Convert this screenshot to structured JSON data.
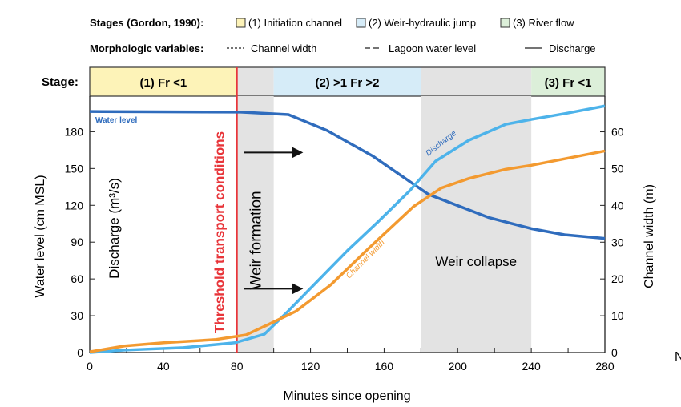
{
  "chart_data": {
    "type": "line",
    "legend": {
      "stages_title": "Stages (Gordon, 1990):",
      "stages": [
        {
          "label": "(1) Initiation channel",
          "color": "#fdf3b8"
        },
        {
          "label": "(2) Weir-hydraulic jump",
          "color": "#d6ecf8"
        },
        {
          "label": "(3) River flow",
          "color": "#dcefd9"
        }
      ],
      "variables_title": "Morphologic variables:",
      "variables": [
        {
          "label": "Channel width",
          "style": "dotted"
        },
        {
          "label": "Lagoon water level",
          "style": "dashed"
        },
        {
          "label": "Discharge",
          "style": "solid"
        }
      ],
      "placement": "top"
    },
    "stage_bar": {
      "label": "Stage:",
      "segments": [
        {
          "from": 0,
          "to": 80,
          "label": "(1) Fr <1",
          "color": "#fdf3b8"
        },
        {
          "from": 80,
          "to": 100,
          "label": "",
          "color": "#e3e3e3"
        },
        {
          "from": 100,
          "to": 180,
          "label": "(2) >1 Fr >2",
          "color": "#d6ecf8"
        },
        {
          "from": 180,
          "to": 240,
          "label": "",
          "color": "#e3e3e3"
        },
        {
          "from": 240,
          "to": 280,
          "label": "(3) Fr <1",
          "color": "#dcefd9"
        }
      ]
    },
    "xlabel": "Minutes since opening",
    "ylabel_left": "Water level (cm MSL)",
    "ylabel_left_inner": "Discharge (m³/s)",
    "ylabel_right": "Channel width (m)",
    "xlim": [
      0,
      280
    ],
    "ylim_left": [
      0,
      209
    ],
    "ylim_right": [
      0,
      69.7
    ],
    "xticks": [
      0,
      40,
      80,
      120,
      160,
      200,
      240,
      280
    ],
    "yticks_left": [
      0,
      30,
      60,
      90,
      120,
      150,
      180
    ],
    "yticks_right": [
      0,
      10,
      20,
      30,
      40,
      50,
      60
    ],
    "grid": false,
    "shaded_regions": [
      {
        "from": 80,
        "to": 100,
        "label": "Weir formation",
        "color": "#e3e3e3"
      },
      {
        "from": 180,
        "to": 240,
        "label": "Weir collapse",
        "color": "#e3e3e3"
      }
    ],
    "threshold": {
      "x": 80,
      "label": "Threshold transport conditions",
      "color": "#e8353a"
    },
    "arrows": [
      {
        "y": 163,
        "from": 81,
        "to": 116
      },
      {
        "y": 52,
        "from": 81,
        "to": 116
      }
    ],
    "series": [
      {
        "name": "Water level",
        "axis": "left",
        "color": "#2f6cbd",
        "x": [
          0,
          82,
          108,
          129,
          154,
          184,
          217,
          240,
          258,
          280
        ],
        "y": [
          196.5,
          196,
          194,
          181,
          160,
          129,
          110,
          101,
          96,
          93
        ]
      },
      {
        "name": "Discharge",
        "axis": "left",
        "color": "#4db3ea",
        "x": [
          0,
          19,
          51,
          79,
          95,
          108,
          123,
          140,
          157,
          174,
          188,
          206,
          226,
          240,
          259,
          280
        ],
        "y": [
          0,
          2,
          4,
          8,
          15,
          34,
          57,
          83,
          107,
          132,
          156,
          173,
          186,
          190,
          195,
          201
        ]
      },
      {
        "name": "Channel width",
        "axis": "right",
        "color": "#f39a30",
        "x": [
          0,
          19,
          41,
          68,
          85,
          97,
          112,
          131,
          152,
          176,
          191,
          206,
          226,
          240,
          280
        ],
        "y": [
          0.2,
          1.8,
          2.7,
          3.5,
          4.8,
          7.6,
          11.2,
          18.4,
          28.5,
          39.7,
          44.7,
          47.3,
          49.8,
          50.9,
          54.8
        ]
      }
    ],
    "stray_text": "N"
  }
}
